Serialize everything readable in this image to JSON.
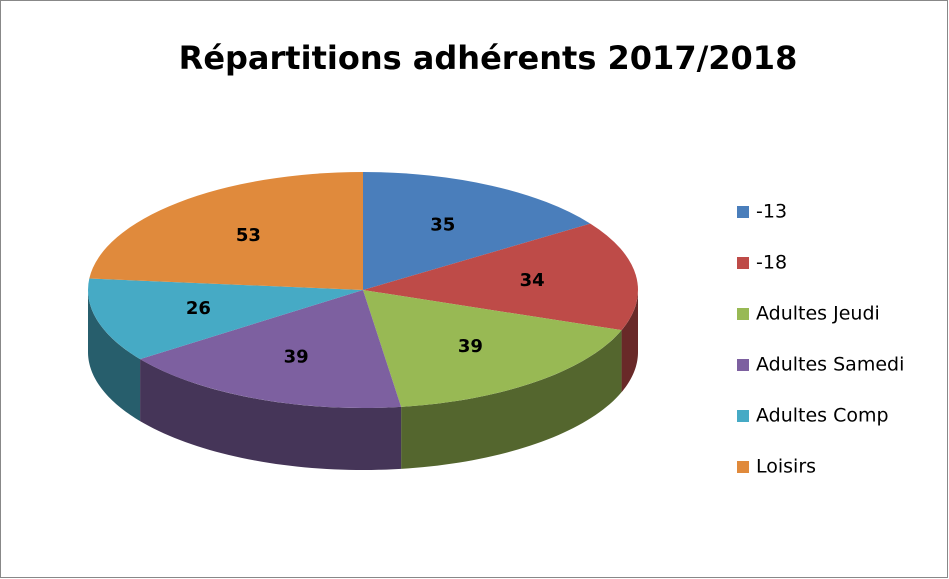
{
  "chart_data": {
    "type": "pie",
    "title": "Répartitions adhérents 2017/2018",
    "categories": [
      "-13",
      "-18",
      "Adultes Jeudi",
      "Adultes Samedi",
      "Adultes Comp",
      "Loisirs"
    ],
    "values": [
      35,
      34,
      39,
      39,
      26,
      53
    ],
    "colors": [
      "#4a7ebb",
      "#be4b48",
      "#98b954",
      "#7d60a0",
      "#46aac5",
      "#e08a3c"
    ],
    "legend": "right"
  }
}
